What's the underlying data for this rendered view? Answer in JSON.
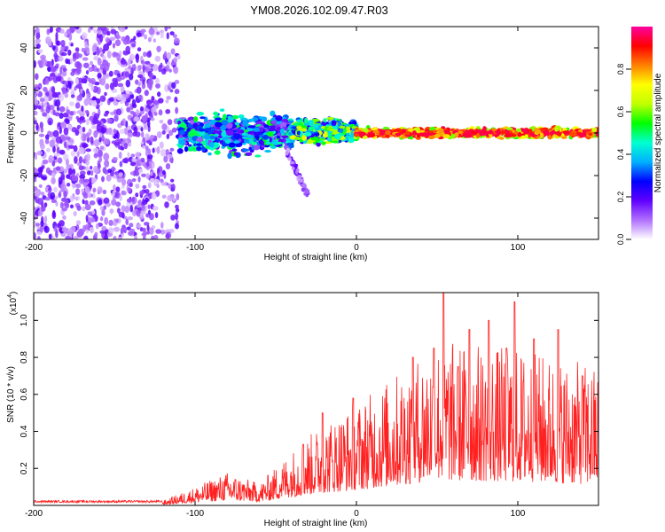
{
  "page_title": "YM08.2026.102.09.47.R03",
  "chart_data": [
    {
      "type": "heatmap",
      "title": "YM08.2026.102.09.47.R03",
      "xlabel": "Height of straight line (km)",
      "ylabel": "Frequency (Hz)",
      "xlim": [
        -200,
        150
      ],
      "ylim": [
        -50,
        50
      ],
      "x_ticks": [
        -200,
        -100,
        0,
        100
      ],
      "y_ticks": [
        -40,
        -20,
        0,
        20,
        40
      ],
      "colorbar": {
        "label": "Normalized spectral amplitude",
        "range": [
          0,
          1
        ],
        "ticks": [
          "0.0",
          "0.2",
          "0.4",
          "0.6",
          "0.8"
        ],
        "tick_values": [
          0.0,
          0.2,
          0.4,
          0.6,
          0.8
        ],
        "colors": [
          "#ffffff",
          "#b070ff",
          "#6000ff",
          "#0000ff",
          "#00b0ff",
          "#00ffd0",
          "#00ff00",
          "#c0ff00",
          "#ffff00",
          "#ff8000",
          "#ff0000",
          "#ff00a0"
        ]
      },
      "regions": [
        {
          "name": "noise",
          "x_range": [
            -200,
            -110
          ],
          "freq_range": [
            -50,
            50
          ],
          "amplitude": [
            0.03,
            0.2
          ]
        },
        {
          "name": "onset-band",
          "x_range": [
            -110,
            -40
          ],
          "freq_range": [
            -12,
            12
          ],
          "amplitude": [
            0.1,
            0.55
          ]
        },
        {
          "name": "tail",
          "x_range": [
            -45,
            -30
          ],
          "freq_range": [
            -30,
            -5
          ],
          "amplitude": [
            0.05,
            0.18
          ]
        },
        {
          "name": "transition-band",
          "x_range": [
            -40,
            0
          ],
          "freq_range": [
            -6,
            8
          ],
          "amplitude": [
            0.2,
            0.7
          ]
        },
        {
          "name": "tone",
          "x_range": [
            0,
            150
          ],
          "freq_range": [
            -3,
            3
          ],
          "center_freq": 0,
          "amplitude": [
            0.55,
            0.95
          ]
        }
      ]
    },
    {
      "type": "line",
      "xlabel": "Height of straight line (km)",
      "ylabel": "SNR (10 * v/v)",
      "y_scale_label": "(x10",
      "y_scale_exponent": "4",
      "xlim": [
        -200,
        150
      ],
      "ylim": [
        0,
        1.15
      ],
      "x_ticks": [
        -200,
        -100,
        0,
        100
      ],
      "y_ticks": [
        0.2,
        0.4,
        0.6,
        0.8,
        1.0
      ],
      "y_tick_labels": [
        "0.2",
        "0.4",
        "0.6",
        "0.8",
        "1.0"
      ],
      "color": "#ff2020",
      "envelope": [
        {
          "x": -200,
          "y": 0.02
        },
        {
          "x": -120,
          "y": 0.025
        },
        {
          "x": -100,
          "y": 0.1
        },
        {
          "x": -80,
          "y": 0.18
        },
        {
          "x": -60,
          "y": 0.12
        },
        {
          "x": -40,
          "y": 0.3
        },
        {
          "x": -20,
          "y": 0.45
        },
        {
          "x": 0,
          "y": 0.55
        },
        {
          "x": 30,
          "y": 0.75
        },
        {
          "x": 50,
          "y": 0.9
        },
        {
          "x": 100,
          "y": 0.85
        },
        {
          "x": 150,
          "y": 0.75
        }
      ],
      "peaks": [
        {
          "x": -33,
          "y": 0.33
        },
        {
          "x": -21,
          "y": 0.5
        },
        {
          "x": -2,
          "y": 0.58
        },
        {
          "x": 35,
          "y": 0.8
        },
        {
          "x": 48,
          "y": 0.85
        },
        {
          "x": 54,
          "y": 1.15
        },
        {
          "x": 63,
          "y": 0.75
        },
        {
          "x": 70,
          "y": 0.95
        },
        {
          "x": 82,
          "y": 1.0
        },
        {
          "x": 93,
          "y": 0.85
        },
        {
          "x": 98,
          "y": 1.1
        },
        {
          "x": 110,
          "y": 0.9
        },
        {
          "x": 125,
          "y": 0.95
        },
        {
          "x": 140,
          "y": 0.7
        }
      ]
    }
  ]
}
